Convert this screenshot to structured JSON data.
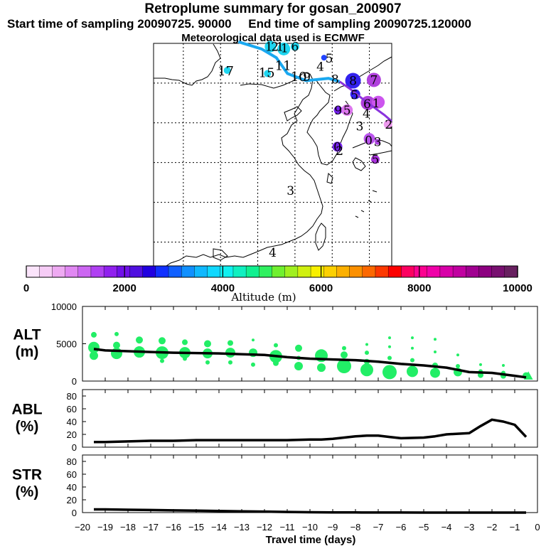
{
  "header": {
    "title": "Retroplume summary for gosan_200907",
    "start_label": "Start time of sampling 20090725. 90000",
    "end_label": "End time of sampling 20090725.120000",
    "met_label": "Meteorological data used is ECMWF"
  },
  "map": {
    "labels": [
      {
        "text": "1",
        "lon": 121.5,
        "lat": 44.6,
        "color": "#1fd6f0"
      },
      {
        "text": "2",
        "lon": 122.3,
        "lat": 44.6,
        "color": "#1fd6f0"
      },
      {
        "text": "1",
        "lon": 123.0,
        "lat": 44.6,
        "color": "#1fd6f0"
      },
      {
        "text": "1",
        "lon": 123.6,
        "lat": 44.4,
        "color": "#1fd6f0"
      },
      {
        "text": "6",
        "lon": 125.0,
        "lat": 44.6,
        "color": "#1fd6f0"
      },
      {
        "text": "17",
        "lon": 115.7,
        "lat": 41.5,
        "color": "#1fd6f0"
      },
      {
        "text": "15",
        "lon": 121.2,
        "lat": 41.3,
        "color": "#1fd6f0"
      },
      {
        "text": "11",
        "lon": 123.4,
        "lat": 42.2,
        "color": "#1fd6f0"
      },
      {
        "text": "10",
        "lon": 125.5,
        "lat": 40.8,
        "color": "#1fd6f0"
      },
      {
        "text": "9",
        "lon": 126.6,
        "lat": 40.8,
        "color": "#1fd6f0"
      },
      {
        "text": "4",
        "lon": 128.4,
        "lat": 42.1,
        "color": "#3333ff"
      },
      {
        "text": "5",
        "lon": 129.6,
        "lat": 43.1,
        "color": "#3333ff"
      },
      {
        "text": "8",
        "lon": 130.4,
        "lat": 40.5,
        "color": "#3333ff"
      },
      {
        "text": "8",
        "lon": 132.8,
        "lat": 40.3,
        "color": "#3333ff"
      },
      {
        "text": "7",
        "lon": 135.6,
        "lat": 40.4,
        "color": "#bb44dd"
      },
      {
        "text": "5",
        "lon": 133.0,
        "lat": 38.5,
        "color": "#5522ee"
      },
      {
        "text": "6",
        "lon": 134.7,
        "lat": 37.4,
        "color": "#aa33dd"
      },
      {
        "text": "1",
        "lon": 135.9,
        "lat": 37.5,
        "color": "#bb44dd"
      },
      {
        "text": "9",
        "lon": 130.8,
        "lat": 36.6,
        "color": "#5522ee"
      },
      {
        "text": "5",
        "lon": 132.0,
        "lat": 36.6,
        "color": "#dd66ee"
      },
      {
        "text": "4",
        "lon": 134.6,
        "lat": 36.2,
        "color": "#7722ee"
      },
      {
        "text": "3",
        "lon": 133.7,
        "lat": 34.6,
        "color": "#7722ee"
      },
      {
        "text": "2",
        "lon": 137.6,
        "lat": 34.8,
        "color": "#ee88ee"
      },
      {
        "text": "0",
        "lon": 134.9,
        "lat": 32.8,
        "color": "#aa44dd"
      },
      {
        "text": "3",
        "lon": 136.1,
        "lat": 32.6,
        "color": "#aa44dd"
      },
      {
        "text": "0",
        "lon": 130.7,
        "lat": 32.0,
        "color": "#7722ee"
      },
      {
        "text": "2",
        "lon": 131.0,
        "lat": 31.5,
        "color": "#cc88ee"
      },
      {
        "text": "5",
        "lon": 135.8,
        "lat": 30.4,
        "color": "#9933dd"
      },
      {
        "text": "3",
        "lon": 124.4,
        "lat": 26.5,
        "color": "#cc66dd"
      },
      {
        "text": "4",
        "lon": 122.0,
        "lat": 18.7,
        "color": "#9933dd"
      }
    ],
    "grid_lons": [
      110,
      115,
      120,
      125,
      130,
      135
    ],
    "grid_lats": [
      20,
      25,
      30,
      35,
      40,
      45
    ]
  },
  "colorbar": {
    "ticks": [
      "0",
      "2000",
      "4000",
      "6000",
      "8000",
      "10000"
    ],
    "label": "Altitude (m)",
    "colors": [
      "#fbe4fb",
      "#f6ccf6",
      "#eeaaf2",
      "#e088f2",
      "#cc66f2",
      "#b040f2",
      "#9020ee",
      "#7010e8",
      "#5010e0",
      "#2000e0",
      "#1030ff",
      "#1060ff",
      "#1090ff",
      "#10b8ff",
      "#10d8ff",
      "#10f0f0",
      "#10f0c0",
      "#10f090",
      "#30f060",
      "#70f030",
      "#a0f020",
      "#d0f010",
      "#f8f000",
      "#fcd000",
      "#fcb000",
      "#fc9000",
      "#fc6800",
      "#fc3800",
      "#fc0000",
      "#fc0060",
      "#fc0090",
      "#f000a8",
      "#d800a8",
      "#c000a0",
      "#a00090",
      "#8c0080",
      "#781070",
      "#682060"
    ]
  },
  "chart_data": [
    {
      "type": "line",
      "name": "ALT",
      "ylabel": "ALT\n(m)",
      "ylabel_lines": [
        "ALT",
        "(m)"
      ],
      "ylim": [
        0,
        10000
      ],
      "yticks": [
        "0",
        "5000",
        "10000"
      ],
      "x": [
        -19.5,
        -19,
        -18,
        -17,
        -16,
        -15,
        -14,
        -13,
        -12,
        -11,
        -10,
        -9,
        -8,
        -7,
        -6,
        -5,
        -4,
        -3,
        -2,
        -1,
        -0.5
      ],
      "values": [
        4300,
        4100,
        4000,
        3900,
        3800,
        3750,
        3700,
        3600,
        3500,
        3200,
        3000,
        2900,
        2800,
        2600,
        2300,
        2100,
        1800,
        1200,
        1100,
        700,
        500
      ],
      "scatter_color": "#22ee66",
      "scatter": [
        {
          "x": -19.5,
          "alt": 6200,
          "s": 4
        },
        {
          "x": -19.5,
          "alt": 4500,
          "s": 8
        },
        {
          "x": -19.5,
          "alt": 3400,
          "s": 6
        },
        {
          "x": -18.5,
          "alt": 6300,
          "s": 3
        },
        {
          "x": -18.5,
          "alt": 4800,
          "s": 5
        },
        {
          "x": -18.5,
          "alt": 3700,
          "s": 8
        },
        {
          "x": -17.5,
          "alt": 5500,
          "s": 5
        },
        {
          "x": -17.5,
          "alt": 3900,
          "s": 8
        },
        {
          "x": -16.5,
          "alt": 5400,
          "s": 5
        },
        {
          "x": -16.5,
          "alt": 3800,
          "s": 9
        },
        {
          "x": -16.5,
          "alt": 2700,
          "s": 3
        },
        {
          "x": -15.5,
          "alt": 5200,
          "s": 4
        },
        {
          "x": -15.5,
          "alt": 3800,
          "s": 8
        },
        {
          "x": -15.5,
          "alt": 3000,
          "s": 3
        },
        {
          "x": -14.5,
          "alt": 5000,
          "s": 5
        },
        {
          "x": -14.5,
          "alt": 3700,
          "s": 7
        },
        {
          "x": -14.5,
          "alt": 2500,
          "s": 3
        },
        {
          "x": -13.5,
          "alt": 5100,
          "s": 4
        },
        {
          "x": -13.5,
          "alt": 3800,
          "s": 7
        },
        {
          "x": -13.5,
          "alt": 2500,
          "s": 3
        },
        {
          "x": -12.5,
          "alt": 5500,
          "s": 2
        },
        {
          "x": -12.5,
          "alt": 3800,
          "s": 6
        },
        {
          "x": -12.5,
          "alt": 2200,
          "s": 3
        },
        {
          "x": -11.5,
          "alt": 4800,
          "s": 3
        },
        {
          "x": -11.5,
          "alt": 3300,
          "s": 9
        },
        {
          "x": -11.5,
          "alt": 2400,
          "s": 4
        },
        {
          "x": -10.5,
          "alt": 4400,
          "s": 5
        },
        {
          "x": -10.5,
          "alt": 3100,
          "s": 3
        },
        {
          "x": -10.5,
          "alt": 2000,
          "s": 6
        },
        {
          "x": -9.5,
          "alt": 3400,
          "s": 9
        },
        {
          "x": -9.5,
          "alt": 1800,
          "s": 6
        },
        {
          "x": -8.5,
          "alt": 4400,
          "s": 3
        },
        {
          "x": -8.5,
          "alt": 3500,
          "s": 5
        },
        {
          "x": -8.5,
          "alt": 2000,
          "s": 10
        },
        {
          "x": -7.5,
          "alt": 4900,
          "s": 2
        },
        {
          "x": -7.5,
          "alt": 3800,
          "s": 3
        },
        {
          "x": -7.5,
          "alt": 2600,
          "s": 4
        },
        {
          "x": -7.5,
          "alt": 1500,
          "s": 9
        },
        {
          "x": -6.5,
          "alt": 5800,
          "s": 2
        },
        {
          "x": -6.5,
          "alt": 4600,
          "s": 2
        },
        {
          "x": -6.5,
          "alt": 3100,
          "s": 3
        },
        {
          "x": -6.5,
          "alt": 1200,
          "s": 10
        },
        {
          "x": -5.5,
          "alt": 5800,
          "s": 2
        },
        {
          "x": -5.5,
          "alt": 4400,
          "s": 2
        },
        {
          "x": -5.5,
          "alt": 2800,
          "s": 3
        },
        {
          "x": -5.5,
          "alt": 1300,
          "s": 8
        },
        {
          "x": -4.5,
          "alt": 5600,
          "s": 2
        },
        {
          "x": -4.5,
          "alt": 3900,
          "s": 2
        },
        {
          "x": -4.5,
          "alt": 2100,
          "s": 4
        },
        {
          "x": -4.5,
          "alt": 1100,
          "s": 7
        },
        {
          "x": -3.5,
          "alt": 3500,
          "s": 2
        },
        {
          "x": -3.5,
          "alt": 2000,
          "s": 3
        },
        {
          "x": -3.5,
          "alt": 1200,
          "s": 6
        },
        {
          "x": -2.5,
          "alt": 2200,
          "s": 2
        },
        {
          "x": -2.5,
          "alt": 1300,
          "s": 3
        },
        {
          "x": -2.5,
          "alt": 800,
          "s": 4
        },
        {
          "x": -1.5,
          "alt": 2100,
          "s": 2
        },
        {
          "x": -1.5,
          "alt": 1100,
          "s": 3
        },
        {
          "x": -1.5,
          "alt": 700,
          "s": 4
        },
        {
          "x": -0.5,
          "alt": 700,
          "s": 5
        }
      ]
    },
    {
      "type": "line",
      "name": "ABL",
      "ylabel": "ABL\n(%)",
      "ylabel_lines": [
        "ABL",
        "(%)"
      ],
      "ylim": [
        0,
        90
      ],
      "yticks": [
        "0",
        "20",
        "40",
        "60",
        "80"
      ],
      "x": [
        -19.5,
        -19,
        -18,
        -17,
        -16,
        -15,
        -14,
        -13,
        -12,
        -11,
        -10,
        -9.5,
        -9,
        -8,
        -7.5,
        -7,
        -6.5,
        -6,
        -5,
        -4.5,
        -4,
        -3.5,
        -3,
        -2.5,
        -2,
        -1.5,
        -1,
        -0.5
      ],
      "values": [
        8,
        8,
        9,
        10,
        10,
        11,
        11,
        11,
        11,
        11,
        12,
        12,
        13,
        17,
        18,
        18,
        16,
        14,
        15,
        17,
        20,
        21,
        22,
        33,
        43,
        40,
        35,
        16
      ]
    },
    {
      "type": "line",
      "name": "STR",
      "ylabel": "STR\n(%)",
      "ylabel_lines": [
        "STR",
        "(%)"
      ],
      "ylim": [
        0,
        90
      ],
      "yticks": [
        "0",
        "20",
        "40",
        "60",
        "80"
      ],
      "x": [
        -19.5,
        -19,
        -18,
        -17,
        -16,
        -15,
        -14,
        -13,
        -12,
        -11,
        -10,
        -9,
        -8,
        -7,
        -6,
        -5,
        -4,
        -3,
        -2,
        -1,
        -0.5
      ],
      "values": [
        5,
        5,
        4.5,
        4,
        3.5,
        3,
        2.5,
        2,
        1.5,
        1,
        0.5,
        0.3,
        0.2,
        0.1,
        0.1,
        0,
        0,
        0,
        0,
        0,
        0
      ]
    }
  ],
  "xaxis": {
    "label": "Travel time (days)",
    "ticks": [
      "−20",
      "−19",
      "−18",
      "−17",
      "−16",
      "−15",
      "−14",
      "−13",
      "−12",
      "−11",
      "−10",
      "−9",
      "−8",
      "−7",
      "−6",
      "−5",
      "−4",
      "−3",
      "−2",
      "−1",
      "0"
    ],
    "xlim": [
      -20,
      0
    ]
  }
}
